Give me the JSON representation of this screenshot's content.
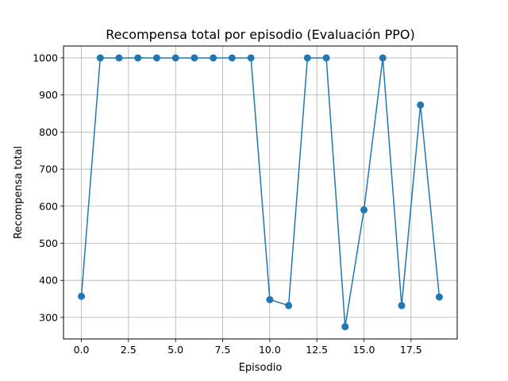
{
  "chart_data": {
    "type": "line",
    "title": "Recompensa total por episodio (Evaluación PPO)",
    "xlabel": "Episodio",
    "ylabel": "Recompensa total",
    "xlim": [
      -0.95,
      19.95
    ],
    "ylim": [
      242,
      1032
    ],
    "x_ticks": [
      0.0,
      2.5,
      5.0,
      7.5,
      10.0,
      12.5,
      15.0,
      17.5
    ],
    "x_tick_labels": [
      "0.0",
      "2.5",
      "5.0",
      "7.5",
      "10.0",
      "12.5",
      "15.0",
      "17.5"
    ],
    "y_ticks": [
      300,
      400,
      500,
      600,
      700,
      800,
      900,
      1000
    ],
    "y_tick_labels": [
      "300",
      "400",
      "500",
      "600",
      "700",
      "800",
      "900",
      "1000"
    ],
    "grid": true,
    "color": "#1f77b4",
    "marker": "circle",
    "series": [
      {
        "x": [
          0,
          1,
          2,
          3,
          4,
          5,
          6,
          7,
          8,
          9,
          10,
          11,
          12,
          13,
          14,
          15,
          16,
          17,
          18,
          19
        ],
        "values": [
          357,
          1000,
          1000,
          1000,
          1000,
          1000,
          1000,
          1000,
          1000,
          1000,
          348,
          332,
          1000,
          1000,
          275,
          590,
          1000,
          332,
          873,
          355
        ]
      }
    ]
  }
}
